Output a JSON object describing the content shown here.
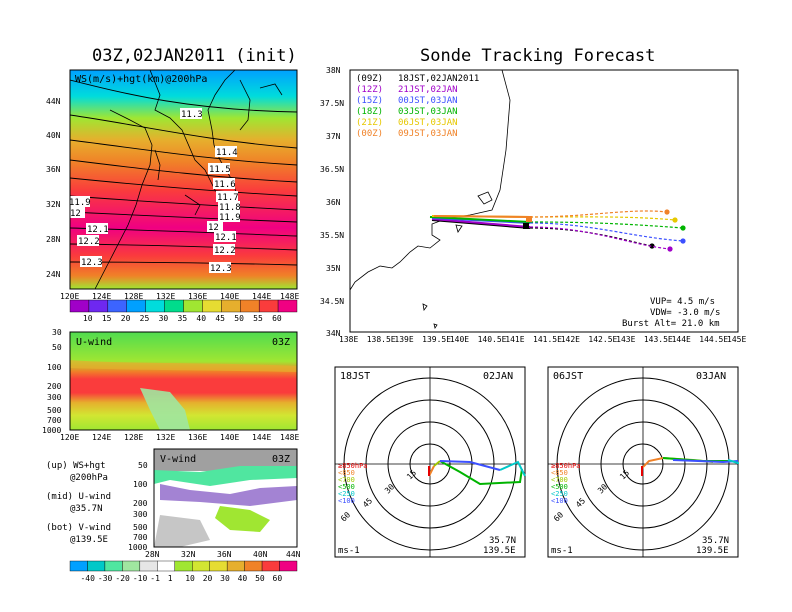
{
  "titles": {
    "left": "03Z,02JAN2011 (init)",
    "right": "Sonde Tracking Forecast"
  },
  "map_panel": {
    "label": "WS(m/s)+hgt(km)@200hPa",
    "lat_ticks": [
      "44N",
      "40N",
      "36N",
      "32N",
      "28N",
      "24N"
    ],
    "lon_ticks": [
      "120E",
      "124E",
      "128E",
      "132E",
      "136E",
      "140E",
      "144E",
      "148E"
    ],
    "contour_labels": [
      "11.3",
      "11.4",
      "11.5",
      "11.6",
      "11.7",
      "11.8",
      "11.9",
      "12",
      "12",
      "12.1",
      "12.1",
      "12.2",
      "12.2",
      "12.3",
      "12.3",
      "11.9"
    ]
  },
  "ws_colorbar": {
    "labels": [
      "10",
      "15",
      "20",
      "25",
      "30",
      "35",
      "40",
      "45",
      "50",
      "55",
      "60"
    ],
    "colors": [
      "#a000c8",
      "#6e28f0",
      "#3c64ff",
      "#00a0ff",
      "#00dcdc",
      "#00dc8c",
      "#a0e632",
      "#e6dc32",
      "#e6af2d",
      "#f08228",
      "#fa3c3c",
      "#f00082"
    ]
  },
  "uwind_panel": {
    "title": "U-wind",
    "time": "03Z",
    "p_ticks": [
      "30",
      "50",
      "100",
      "200",
      "300",
      "500",
      "700",
      "1000"
    ],
    "lon_ticks": [
      "120E",
      "124E",
      "128E",
      "132E",
      "136E",
      "140E",
      "144E",
      "148E"
    ]
  },
  "vwind_panel": {
    "title": "V-wind",
    "time": "03Z",
    "p_ticks": [
      "50",
      "100",
      "200",
      "300",
      "500",
      "700",
      "1000"
    ],
    "lat_ticks": [
      "28N",
      "32N",
      "36N",
      "40N",
      "44N"
    ]
  },
  "legend_text": {
    "up_1": "(up) WS+hgt",
    "up_2": "@200hPa",
    "mid_1": "(mid) U-wind",
    "mid_2": "@35.7N",
    "bot_1": "(bot) V-wind",
    "bot_2": "@139.5E"
  },
  "wind_colorbar": {
    "labels": [
      "-40",
      "-30",
      "-20",
      "-10",
      "-1",
      "1",
      "10",
      "20",
      "30",
      "40",
      "50",
      "60"
    ],
    "colors": [
      "#00a0ff",
      "#00c8c8",
      "#50e6a0",
      "#a0e6a0",
      "#e6e6e6",
      "#ffffff",
      "#a0e632",
      "#d2e632",
      "#e6dc32",
      "#e6af2d",
      "#f08228",
      "#fa3c3c",
      "#f00082"
    ]
  },
  "track_panel": {
    "lat_ticks": [
      "38N",
      "37.5N",
      "37N",
      "36.5N",
      "36N",
      "35.5N",
      "35N",
      "34.5N",
      "34N"
    ],
    "lon_ticks": [
      "138E",
      "138.5E",
      "139E",
      "139.5E",
      "140E",
      "140.5E",
      "141E",
      "141.5E",
      "142E",
      "142.5E",
      "143E",
      "143.5E",
      "144E",
      "144.5E",
      "145E"
    ],
    "launches": [
      {
        "utc": "(09Z)",
        "jst": "18JST,02JAN2011",
        "color": "#000000"
      },
      {
        "utc": "(12Z)",
        "jst": "21JST,02JAN",
        "color": "#a000c8"
      },
      {
        "utc": "(15Z)",
        "jst": "00JST,03JAN",
        "color": "#3c50ff"
      },
      {
        "utc": "(18Z)",
        "jst": "03JST,03JAN",
        "color": "#00b400"
      },
      {
        "utc": "(21Z)",
        "jst": "06JST,03JAN",
        "color": "#e6c800"
      },
      {
        "utc": "(00Z)",
        "jst": "09JST,03JAN",
        "color": "#f08228"
      }
    ],
    "vup": "VUP= 4.5 m/s",
    "vdw": "VDW= -3.0 m/s",
    "burst": "Burst Alt= 21.0 km"
  },
  "polar_left": {
    "time": "18JST",
    "date": "02JAN",
    "ring_labels": [
      "15",
      "30",
      "45",
      "60"
    ],
    "levels": [
      "≥850hPa",
      "<850",
      "<700",
      "<500",
      "<250",
      "<100"
    ],
    "level_colors": [
      "#e60000",
      "#f08228",
      "#a0c800",
      "#00b400",
      "#00c8c8",
      "#3c50ff"
    ],
    "lat": "35.7N",
    "lon": "139.5E",
    "unit": "ms-1"
  },
  "polar_right": {
    "time": "06JST",
    "date": "03JAN",
    "ring_labels": [
      "15",
      "30",
      "45",
      "60"
    ],
    "levels": [
      "≥850hPa",
      "<850",
      "<700",
      "<500",
      "<250",
      "<100"
    ],
    "level_colors": [
      "#e60000",
      "#f08228",
      "#a0c800",
      "#00b400",
      "#00c8c8",
      "#3c50ff"
    ],
    "lat": "35.7N",
    "lon": "139.5E",
    "unit": "ms-1"
  }
}
